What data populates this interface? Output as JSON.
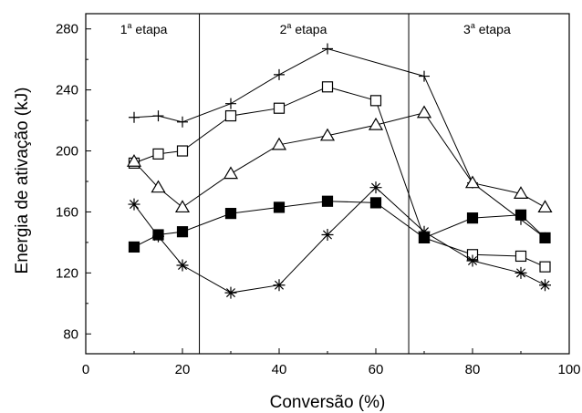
{
  "chart_data": {
    "type": "line",
    "xlabel": "Conversão (%)",
    "ylabel": "Energia de ativação (kJ)",
    "xlim": [
      0,
      100
    ],
    "ylim": [
      67,
      290
    ],
    "xticks": [
      0,
      20,
      40,
      60,
      80,
      100
    ],
    "yticks": [
      80,
      120,
      160,
      200,
      240,
      280
    ],
    "grid": false,
    "dividers": [
      23.5,
      66.8
    ],
    "stages": [
      {
        "num": "1",
        "sup": "a",
        "text": " etapa",
        "x_center": 12
      },
      {
        "num": "2",
        "sup": "a",
        "text": " etapa",
        "x_center": 45
      },
      {
        "num": "3",
        "sup": "a",
        "text": " etapa",
        "x_center": 83
      }
    ],
    "series": [
      {
        "marker": "plus",
        "x": [
          10,
          15,
          20,
          30,
          40,
          50,
          70,
          80,
          90,
          95
        ],
        "y": [
          222,
          223,
          219,
          231,
          250,
          267,
          249,
          179,
          155,
          143
        ]
      },
      {
        "marker": "open-square",
        "x": [
          10,
          15,
          20,
          30,
          40,
          50,
          60,
          70,
          80,
          90,
          95
        ],
        "y": [
          192,
          198,
          200,
          223,
          228,
          242,
          233,
          143,
          132,
          131,
          124
        ]
      },
      {
        "marker": "open-triangle",
        "x": [
          10,
          15,
          20,
          30,
          40,
          50,
          60,
          70,
          80,
          90,
          95
        ],
        "y": [
          193,
          176,
          163,
          185,
          204,
          210,
          217,
          225,
          179,
          172,
          163
        ]
      },
      {
        "marker": "filled-square",
        "x": [
          10,
          15,
          20,
          30,
          40,
          50,
          60,
          70,
          80,
          90,
          95
        ],
        "y": [
          137,
          145,
          147,
          159,
          163,
          167,
          166,
          143,
          156,
          158,
          143
        ]
      },
      {
        "marker": "asterisk",
        "x": [
          10,
          15,
          20,
          30,
          40,
          50,
          60,
          70,
          80,
          90,
          95
        ],
        "y": [
          165,
          144,
          125,
          107,
          112,
          145,
          176,
          147,
          128,
          120,
          112
        ]
      }
    ]
  }
}
